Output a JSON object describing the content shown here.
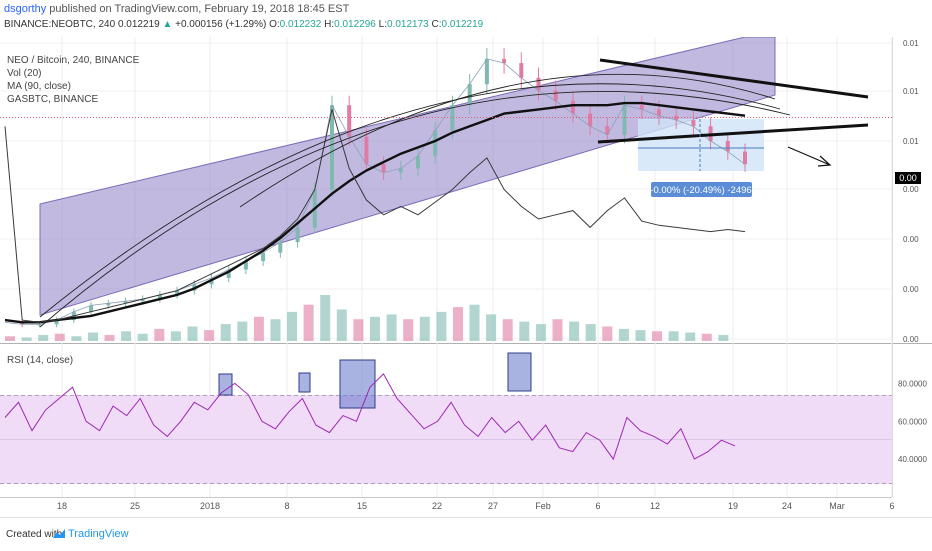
{
  "header": {
    "user": "dsgorthy",
    "published": "published on TradingView.com, February 19, 2018 18:45 EST",
    "symbol": "BINANCE:NEOBTC, 240",
    "last": "0.012219",
    "change": "+0.000156 (+1.29%)",
    "o_label": "O:",
    "o": "0.012232",
    "h_label": "H:",
    "h": "0.012296",
    "l_label": "L:",
    "l": "0.012173",
    "c_label": "C:",
    "c": "0.012219"
  },
  "legend": {
    "main": "NEO / Bitcoin, 240, BINANCE",
    "vol": "Vol (20)",
    "ma": "MA (90, close)",
    "compare": "GASBTC, BINANCE",
    "rsi": "RSI (14, close)"
  },
  "measure_label": "-0.00% (-20.49%) -2496",
  "price_badge": "0.00",
  "footer": {
    "created": "Created with",
    "brand": "TradingView"
  },
  "colors": {
    "channel": "#9080c8",
    "rsi_line": "#9c27b0",
    "rsi_band": "#f1dcf8",
    "box": "#6074c8",
    "candle_up": "#7fb9b0",
    "candle_down": "#e07ba3",
    "measure_fill": "#cfe4f8",
    "measure_label_bg": "#5b8dd6"
  },
  "chart_data": [
    {
      "type": "line",
      "panel": "price",
      "x_ticks": [
        "18",
        "25",
        "2018",
        "8",
        "15",
        "22",
        "27",
        "Feb",
        "6",
        "12",
        "19",
        "24",
        "Mar",
        "6"
      ],
      "y_tick_labels": [
        "0.01",
        "0.01",
        "0.01",
        "0.00",
        "0.00",
        "0.00",
        "0.00",
        "0.00"
      ],
      "series": [
        {
          "values": [
            0.0047,
            0.0046,
            0.0046,
            0.0048,
            0.0052,
            0.0055,
            0.0056,
            0.0057,
            0.0058,
            0.006,
            0.0062,
            0.0065,
            0.0068,
            0.0072,
            0.0076,
            0.008,
            0.0085,
            0.0092,
            0.011,
            0.015,
            0.0135,
            0.0122,
            0.0118,
            0.012,
            0.0126,
            0.0138,
            0.015,
            0.016,
            0.0172,
            0.017,
            0.0163,
            0.0157,
            0.0152,
            0.0146,
            0.014,
            0.0136,
            0.015,
            0.0148,
            0.0145,
            0.0143,
            0.014,
            0.0133,
            0.0128,
            0.0122
          ]
        },
        {
          "values": [
            0.0048,
            0.0047,
            0.0047,
            0.0048,
            0.0049,
            0.005,
            0.0052,
            0.0054,
            0.0056,
            0.0058,
            0.006,
            0.0063,
            0.0067,
            0.0071,
            0.0076,
            0.0081,
            0.0087,
            0.0094,
            0.0101,
            0.0108,
            0.0114,
            0.0119,
            0.0123,
            0.0127,
            0.013,
            0.0133,
            0.0137,
            0.014,
            0.0143,
            0.0146,
            0.0147,
            0.0148,
            0.0149,
            0.015,
            0.015,
            0.015,
            0.0151,
            0.0151,
            0.015,
            0.0149,
            0.0148,
            0.0147,
            0.0146,
            0.0145
          ]
        },
        {
          "values": [
            0.014,
            0.0048,
            0.0047,
            0.0048,
            0.005,
            0.0052,
            0.0054,
            0.0056,
            0.0058,
            0.006,
            0.0062,
            0.0066,
            0.007,
            0.0074,
            0.0078,
            0.0082,
            0.0088,
            0.0096,
            0.011,
            0.0148,
            0.012,
            0.0105,
            0.0098,
            0.0102,
            0.0098,
            0.0104,
            0.011,
            0.0118,
            0.0125,
            0.011,
            0.0102,
            0.0096,
            0.0098,
            0.01,
            0.0092,
            0.01,
            0.0106,
            0.0095,
            0.0093,
            0.0092,
            0.0091,
            0.009,
            0.0091,
            0.009
          ]
        }
      ]
    },
    {
      "type": "line",
      "panel": "rsi",
      "y_ticks": [
        40,
        60,
        80
      ],
      "y_tick_labels": [
        "40.0000",
        "60.0000",
        "80.0000"
      ],
      "band": [
        30,
        70
      ],
      "series": [
        {
          "values": [
            62,
            70,
            55,
            66,
            72,
            78,
            60,
            55,
            68,
            63,
            72,
            58,
            52,
            60,
            70,
            66,
            75,
            80,
            74,
            60,
            56,
            65,
            72,
            58,
            54,
            63,
            60,
            78,
            85,
            72,
            64,
            56,
            60,
            70,
            58,
            52,
            62,
            54,
            60,
            50,
            58,
            46,
            44,
            54,
            50,
            40,
            62,
            55,
            52,
            48,
            56,
            40,
            44,
            50,
            47
          ]
        }
      ]
    },
    {
      "type": "bar",
      "panel": "volume",
      "series": [
        {
          "values": [
            4,
            3,
            5,
            6,
            4,
            7,
            5,
            8,
            6,
            10,
            8,
            12,
            9,
            14,
            16,
            20,
            18,
            24,
            30,
            38,
            26,
            18,
            20,
            22,
            18,
            20,
            24,
            28,
            30,
            22,
            18,
            16,
            14,
            18,
            16,
            14,
            12,
            10,
            9,
            8,
            8,
            7,
            6,
            5
          ]
        }
      ]
    }
  ]
}
